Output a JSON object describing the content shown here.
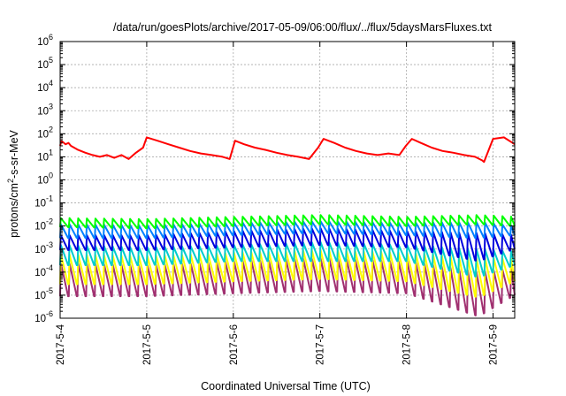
{
  "chart_data": {
    "type": "line",
    "title": "/data/run/goesPlots/archive/2017-05-09/06:00/flux/../flux/5daysMarsFluxes.txt",
    "xlabel": "Coordinated Universal Time (UTC)",
    "ylabel": "protons/cm2-s-sr-MeV",
    "ylabel_parts": {
      "pre": "protons/cm",
      "sup": "2",
      "post": "-s-sr-MeV"
    },
    "y_scale": "log",
    "ylim": [
      1e-06,
      1000000.0
    ],
    "y_ticks": [
      {
        "base": "10",
        "exp": "-6",
        "value": 1e-06
      },
      {
        "base": "10",
        "exp": "-5",
        "value": 1e-05
      },
      {
        "base": "10",
        "exp": "-4",
        "value": 0.0001
      },
      {
        "base": "10",
        "exp": "-3",
        "value": 0.001
      },
      {
        "base": "10",
        "exp": "-2",
        "value": 0.01
      },
      {
        "base": "10",
        "exp": "-1",
        "value": 0.1
      },
      {
        "base": "10",
        "exp": "0",
        "value": 1
      },
      {
        "base": "10",
        "exp": "1",
        "value": 10
      },
      {
        "base": "10",
        "exp": "2",
        "value": 100
      },
      {
        "base": "10",
        "exp": "3",
        "value": 1000
      },
      {
        "base": "10",
        "exp": "4",
        "value": 10000
      },
      {
        "base": "10",
        "exp": "5",
        "value": 100000
      },
      {
        "base": "10",
        "exp": "6",
        "value": 1000000
      }
    ],
    "x_range": [
      "2017-05-04 00:00",
      "2017-05-09 06:00"
    ],
    "x_ticks": [
      "2017-5-4",
      "2017-5-5",
      "2017-5-6",
      "2017-5-7",
      "2017-5-8",
      "2017-5-9"
    ],
    "grid": true,
    "sawtooth_period_hours": 2.4,
    "series": [
      {
        "color": "#ff0000",
        "x": [
          "2017-05-04 00:00",
          "2017-05-04 00:20",
          "2017-05-04 01:30",
          "2017-05-04 02:20",
          "2017-05-04 03:00",
          "2017-05-04 05:00",
          "2017-05-04 07:00",
          "2017-05-04 09:00",
          "2017-05-04 11:00",
          "2017-05-04 13:00",
          "2017-05-04 15:00",
          "2017-05-04 17:00",
          "2017-05-04 19:00",
          "2017-05-04 21:00",
          "2017-05-04 23:00",
          "2017-05-05 00:00",
          "2017-05-05 03:00",
          "2017-05-05 06:00",
          "2017-05-05 09:00",
          "2017-05-05 12:00",
          "2017-05-05 15:00",
          "2017-05-05 18:00",
          "2017-05-05 21:00",
          "2017-05-05 23:00",
          "2017-05-06 00:30",
          "2017-05-06 03:00",
          "2017-05-06 06:00",
          "2017-05-06 09:00",
          "2017-05-06 12:00",
          "2017-05-06 15:00",
          "2017-05-06 18:00",
          "2017-05-06 21:00",
          "2017-05-06 23:30",
          "2017-05-07 01:00",
          "2017-05-07 04:00",
          "2017-05-07 07:00",
          "2017-05-07 10:00",
          "2017-05-07 13:00",
          "2017-05-07 16:00",
          "2017-05-07 19:00",
          "2017-05-07 22:00",
          "2017-05-07 23:50",
          "2017-05-08 01:30",
          "2017-05-08 04:00",
          "2017-05-08 07:00",
          "2017-05-08 10:00",
          "2017-05-08 13:00",
          "2017-05-08 16:00",
          "2017-05-08 19:00",
          "2017-05-08 21:00",
          "2017-05-08 21:30",
          "2017-05-09 00:00",
          "2017-05-09 03:00",
          "2017-05-09 06:00"
        ],
        "y": [
          30,
          50,
          35,
          40,
          30,
          20,
          15,
          12,
          10,
          12,
          9,
          12,
          8,
          15,
          25,
          70,
          50,
          35,
          25,
          18,
          14,
          12,
          10,
          8,
          50,
          35,
          25,
          20,
          15,
          12,
          10,
          8,
          25,
          60,
          40,
          25,
          18,
          14,
          12,
          14,
          12,
          30,
          60,
          40,
          25,
          18,
          15,
          12,
          10,
          7,
          6,
          60,
          70,
          35
        ]
      },
      {
        "color": "#00ff00",
        "x": [
          "2017-05-04 00:00",
          "2017-05-08 20:00",
          "2017-05-08 22:00",
          "2017-05-09 00:00",
          "2017-05-09 06:00"
        ],
        "y": [
          0.022,
          0.03,
          0.013,
          0.028,
          0.025
        ],
        "x_trend": [
          "2017-05-04 00:00",
          "2017-05-05 00:00",
          "2017-05-06 00:00",
          "2017-05-07 00:00",
          "2017-05-08 00:00",
          "2017-05-08 20:00",
          "2017-05-09 06:00"
        ],
        "y_trend_top": [
          0.022,
          0.02,
          0.025,
          0.03,
          0.025,
          0.03,
          0.025
        ],
        "y_trend_bottom": [
          0.009,
          0.008,
          0.01,
          0.012,
          0.01,
          0.012,
          0.01
        ]
      },
      {
        "color": "#0080ff",
        "x_trend": [
          "2017-05-04 00:00",
          "2017-05-05 00:00",
          "2017-05-06 00:00",
          "2017-05-07 00:00",
          "2017-05-08 00:00",
          "2017-05-08 20:00",
          "2017-05-09 06:00"
        ],
        "y_trend_top": [
          0.012,
          0.011,
          0.014,
          0.016,
          0.014,
          0.015,
          0.01
        ],
        "y_trend_bottom": [
          0.003,
          0.003,
          0.004,
          0.005,
          0.004,
          0.003,
          0.004
        ]
      },
      {
        "color": "#0000dd",
        "x_trend": [
          "2017-05-04 00:00",
          "2017-05-05 00:00",
          "2017-05-06 00:00",
          "2017-05-07 00:00",
          "2017-05-08 00:00",
          "2017-05-08 20:00",
          "2017-05-09 06:00"
        ],
        "y_trend_top": [
          0.004,
          0.004,
          0.006,
          0.008,
          0.006,
          0.005,
          0.004
        ],
        "y_trend_bottom": [
          0.0009,
          0.0009,
          0.0012,
          0.0015,
          0.0012,
          0.0003,
          0.001
        ]
      },
      {
        "color": "#00cccc",
        "x_trend": [
          "2017-05-04 00:00",
          "2017-05-05 00:00",
          "2017-05-06 00:00",
          "2017-05-07 00:00",
          "2017-05-08 00:00",
          "2017-05-08 20:00",
          "2017-05-09 06:00"
        ],
        "y_trend_top": [
          0.0015,
          0.0012,
          0.0015,
          0.002,
          0.0015,
          0.001,
          0.0008
        ],
        "y_trend_bottom": [
          0.0002,
          0.0002,
          0.0003,
          0.0003,
          0.0003,
          6e-05,
          0.0002
        ]
      },
      {
        "color": "#ffff00",
        "x_trend": [
          "2017-05-04 00:00",
          "2017-05-05 00:00",
          "2017-05-06 00:00",
          "2017-05-07 00:00",
          "2017-05-08 00:00",
          "2017-05-08 20:00",
          "2017-05-09 06:00"
        ],
        "y_trend_top": [
          0.0006,
          0.0005,
          0.0007,
          0.0009,
          0.0007,
          0.0004,
          0.0004
        ],
        "y_trend_bottom": [
          3e-05,
          3e-05,
          4e-05,
          5e-05,
          4e-05,
          8e-06,
          4e-05
        ]
      },
      {
        "color": "#a03070",
        "x_trend": [
          "2017-05-04 00:00",
          "2017-05-05 00:00",
          "2017-05-06 00:00",
          "2017-05-07 00:00",
          "2017-05-08 00:00",
          "2017-05-08 20:00",
          "2017-05-09 06:00"
        ],
        "y_trend_top": [
          0.00025,
          0.0002,
          0.0003,
          0.0004,
          0.0003,
          0.0001,
          0.00015
        ],
        "y_trend_bottom": [
          9e-06,
          9e-06,
          1.2e-05,
          1.5e-05,
          1.2e-05,
          1.2e-06,
          1e-05
        ]
      }
    ]
  }
}
